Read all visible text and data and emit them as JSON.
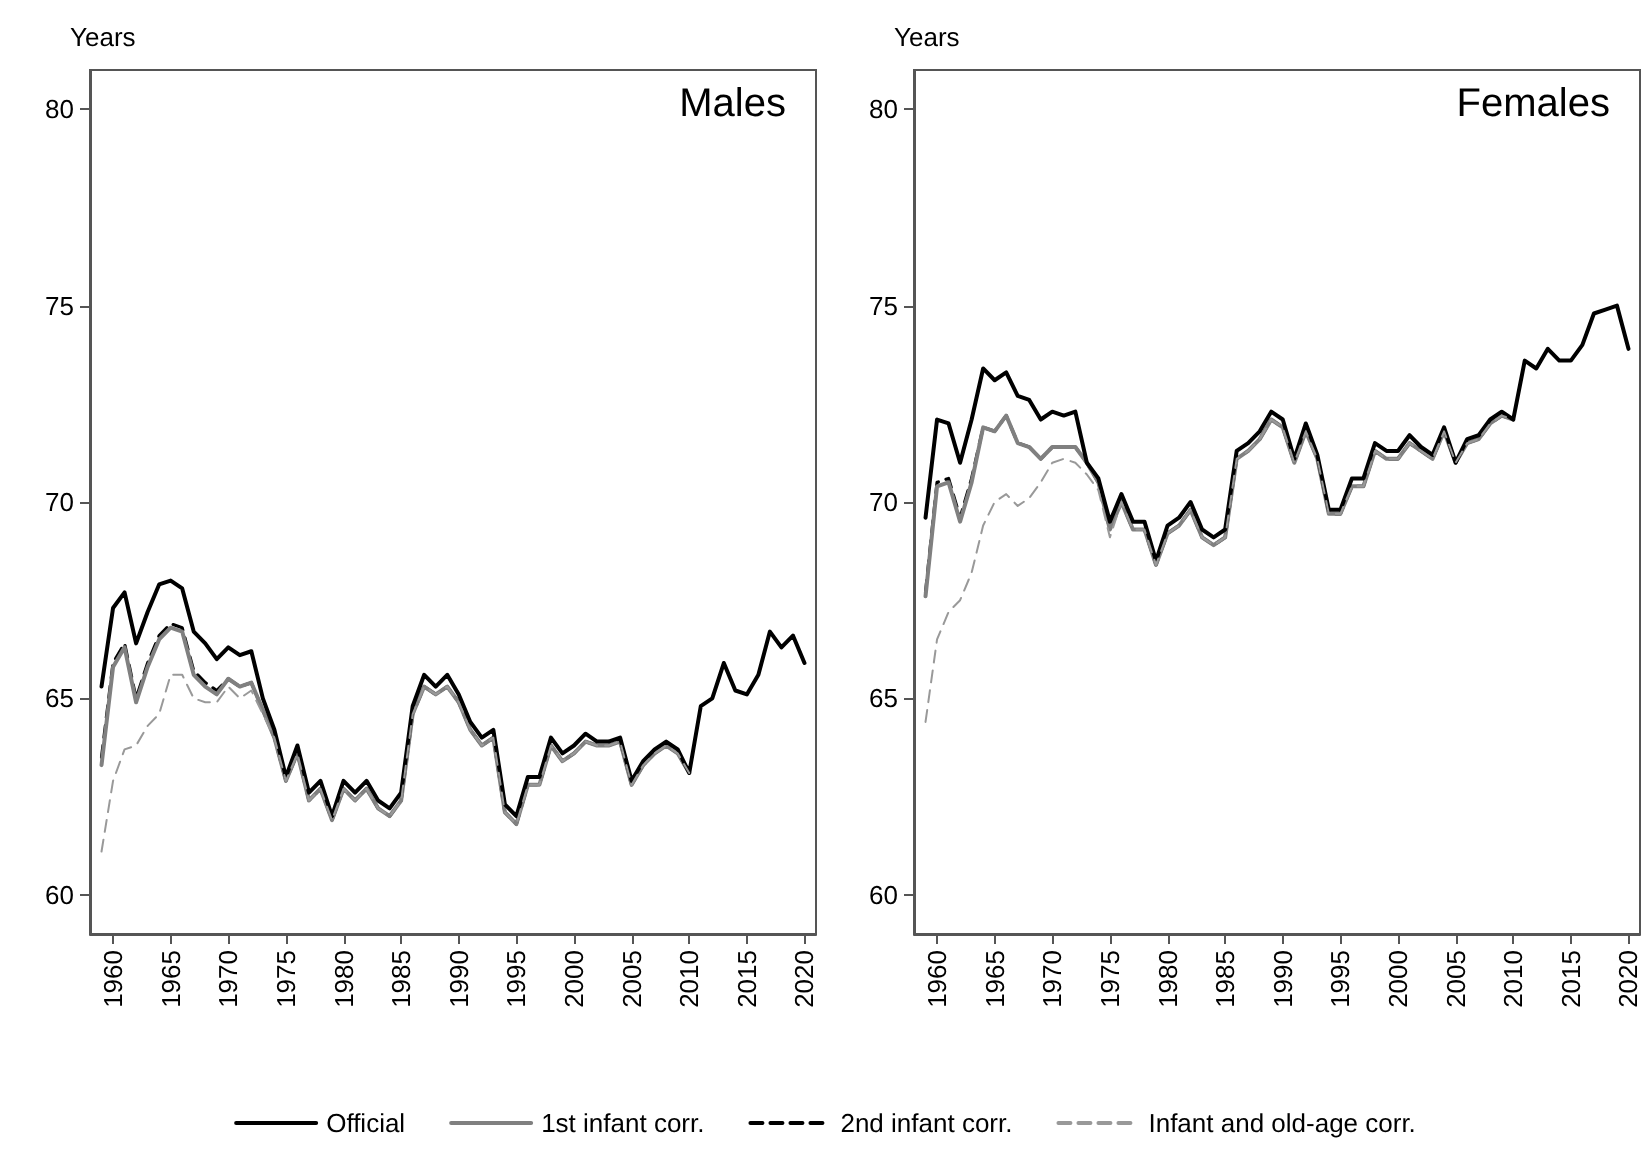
{
  "chart_data": [
    {
      "type": "line",
      "title": "Males",
      "ylabel": "Years",
      "legend": "bottom",
      "marker": "none",
      "grid": false,
      "x": [
        1959,
        1960,
        1961,
        1962,
        1963,
        1964,
        1965,
        1966,
        1967,
        1968,
        1969,
        1970,
        1971,
        1972,
        1973,
        1974,
        1975,
        1976,
        1977,
        1978,
        1979,
        1980,
        1981,
        1982,
        1983,
        1984,
        1985,
        1986,
        1987,
        1988,
        1989,
        1990,
        1991,
        1992,
        1993,
        1994,
        1995,
        1996,
        1997,
        1998,
        1999,
        2000,
        2001,
        2002,
        2003,
        2004,
        2005,
        2006,
        2007,
        2008,
        2009,
        2010,
        2011,
        2012,
        2013,
        2014,
        2015,
        2016,
        2017,
        2018,
        2019,
        2020
      ],
      "xlim": [
        1958,
        2021
      ],
      "xticks": [
        1960,
        1965,
        1970,
        1975,
        1980,
        1985,
        1990,
        1995,
        2000,
        2005,
        2010,
        2015,
        2020
      ],
      "ylim": [
        59,
        81
      ],
      "yticks": [
        60,
        65,
        70,
        75,
        80
      ],
      "series": [
        {
          "name": "Official",
          "color": "#000000",
          "line_style": "solid",
          "values": [
            65.3,
            67.3,
            67.7,
            66.4,
            67.2,
            67.9,
            68.0,
            67.8,
            66.7,
            66.4,
            66.0,
            66.3,
            66.1,
            66.2,
            65.0,
            64.2,
            63.0,
            63.8,
            62.6,
            62.9,
            62.0,
            62.9,
            62.6,
            62.9,
            62.4,
            62.2,
            62.6,
            64.8,
            65.6,
            65.3,
            65.6,
            65.1,
            64.4,
            64.0,
            64.2,
            62.3,
            62.0,
            63.0,
            63.0,
            64.0,
            63.6,
            63.8,
            64.1,
            63.9,
            63.9,
            64.0,
            62.9,
            63.4,
            63.7,
            63.9,
            63.7,
            63.1,
            64.8,
            65.0,
            65.9,
            65.2,
            65.1,
            65.6,
            66.7,
            66.3,
            66.6,
            65.9
          ]
        },
        {
          "name": "1st infant corr.",
          "color": "#808080",
          "line_style": "solid",
          "values": [
            63.3,
            65.8,
            66.3,
            64.9,
            65.8,
            66.5,
            66.8,
            66.7,
            65.6,
            65.3,
            65.1,
            65.5,
            65.3,
            65.4,
            64.7,
            64.0,
            62.9,
            63.6,
            62.4,
            62.7,
            61.9,
            62.7,
            62.4,
            62.7,
            62.2,
            62.0,
            62.4,
            64.6,
            65.3,
            65.1,
            65.3,
            64.9,
            64.2,
            63.8,
            64.0,
            62.1,
            61.8,
            62.8,
            62.8,
            63.8,
            63.4,
            63.6,
            63.9,
            63.8,
            63.8,
            63.9,
            62.8,
            63.3,
            63.6,
            63.8,
            63.6,
            63.1,
            null,
            null,
            null,
            null,
            null,
            null,
            null,
            null,
            null,
            null
          ]
        },
        {
          "name": "2nd infant corr.",
          "color": "#000000",
          "line_style": "dashed",
          "values": [
            63.5,
            65.9,
            66.4,
            65.0,
            65.9,
            66.6,
            66.9,
            66.8,
            65.7,
            65.4,
            65.2,
            65.5,
            65.3,
            65.4,
            64.7,
            64.0,
            62.9,
            63.6,
            62.4,
            62.7,
            61.9,
            62.7,
            62.4,
            62.7,
            62.2,
            62.0,
            62.4,
            64.6,
            65.3,
            65.1,
            65.3,
            64.9,
            64.2,
            63.8,
            64.0,
            62.1,
            61.8,
            62.8,
            62.8,
            63.8,
            63.4,
            63.6,
            63.9,
            63.8,
            63.8,
            63.9,
            62.8,
            63.3,
            63.6,
            63.8,
            63.6,
            63.1,
            null,
            null,
            null,
            null,
            null,
            null,
            null,
            null,
            null,
            null
          ]
        },
        {
          "name": "Infant and old-age corr.",
          "color": "#999999",
          "line_style": "dashed",
          "values": [
            61.1,
            62.9,
            63.7,
            63.8,
            64.3,
            64.6,
            65.6,
            65.6,
            65.0,
            64.9,
            64.9,
            65.3,
            65.0,
            65.2,
            64.6,
            64.0,
            62.9,
            63.6,
            62.4,
            62.7,
            61.9,
            62.7,
            62.4,
            62.7,
            62.2,
            62.0,
            62.4,
            64.6,
            65.3,
            65.1,
            65.3,
            64.9,
            64.2,
            63.8,
            64.0,
            62.1,
            61.8,
            62.8,
            62.8,
            63.8,
            63.4,
            63.6,
            63.9,
            63.8,
            63.8,
            63.9,
            62.8,
            63.3,
            63.6,
            63.8,
            63.6,
            63.1,
            null,
            null,
            null,
            null,
            null,
            null,
            null,
            null,
            null,
            null
          ]
        }
      ]
    },
    {
      "type": "line",
      "title": "Females",
      "ylabel": "Years",
      "legend": false,
      "marker": "none",
      "grid": false,
      "x": [
        1959,
        1960,
        1961,
        1962,
        1963,
        1964,
        1965,
        1966,
        1967,
        1968,
        1969,
        1970,
        1971,
        1972,
        1973,
        1974,
        1975,
        1976,
        1977,
        1978,
        1979,
        1980,
        1981,
        1982,
        1983,
        1984,
        1985,
        1986,
        1987,
        1988,
        1989,
        1990,
        1991,
        1992,
        1993,
        1994,
        1995,
        1996,
        1997,
        1998,
        1999,
        2000,
        2001,
        2002,
        2003,
        2004,
        2005,
        2006,
        2007,
        2008,
        2009,
        2010,
        2011,
        2012,
        2013,
        2014,
        2015,
        2016,
        2017,
        2018,
        2019,
        2020
      ],
      "xlim": [
        1958,
        2021
      ],
      "xticks": [
        1960,
        1965,
        1970,
        1975,
        1980,
        1985,
        1990,
        1995,
        2000,
        2005,
        2010,
        2015,
        2020
      ],
      "ylim": [
        59,
        81
      ],
      "yticks": [
        60,
        65,
        70,
        75,
        80
      ],
      "series": [
        {
          "color": "#000000",
          "line_style": "solid",
          "values": [
            69.6,
            72.1,
            72.0,
            71.0,
            72.1,
            73.4,
            73.1,
            73.3,
            72.7,
            72.6,
            72.1,
            72.3,
            72.2,
            72.3,
            71.0,
            70.6,
            69.5,
            70.2,
            69.5,
            69.5,
            68.5,
            69.4,
            69.6,
            70.0,
            69.3,
            69.1,
            69.3,
            71.3,
            71.5,
            71.8,
            72.3,
            72.1,
            71.1,
            72.0,
            71.2,
            69.8,
            69.8,
            70.6,
            70.6,
            71.5,
            71.3,
            71.3,
            71.7,
            71.4,
            71.2,
            71.9,
            71.0,
            71.6,
            71.7,
            72.1,
            72.3,
            72.1,
            73.6,
            73.4,
            73.9,
            73.6,
            73.6,
            74.0,
            74.8,
            74.9,
            75.0,
            73.9
          ]
        },
        {
          "color": "#808080",
          "line_style": "solid",
          "values": [
            67.6,
            70.4,
            70.5,
            69.5,
            70.5,
            71.9,
            71.8,
            72.2,
            71.5,
            71.4,
            71.1,
            71.4,
            71.4,
            71.4,
            71.0,
            70.5,
            69.3,
            70.0,
            69.3,
            69.3,
            68.4,
            69.2,
            69.4,
            69.8,
            69.1,
            68.9,
            69.1,
            71.1,
            71.3,
            71.6,
            72.1,
            71.9,
            71.0,
            71.8,
            71.1,
            69.7,
            69.7,
            70.4,
            70.4,
            71.3,
            71.1,
            71.1,
            71.5,
            71.3,
            71.1,
            71.8,
            71.0,
            71.5,
            71.6,
            72.0,
            72.2,
            72.1,
            null,
            null,
            null,
            null,
            null,
            null,
            null,
            null,
            null,
            null
          ]
        },
        {
          "color": "#000000",
          "line_style": "dashed",
          "values": [
            67.7,
            70.5,
            70.6,
            69.6,
            70.6,
            71.9,
            71.8,
            72.2,
            71.5,
            71.4,
            71.1,
            71.4,
            71.4,
            71.4,
            71.0,
            70.5,
            69.3,
            70.0,
            69.3,
            69.3,
            68.4,
            69.2,
            69.4,
            69.8,
            69.1,
            68.9,
            69.1,
            71.1,
            71.3,
            71.6,
            72.1,
            71.9,
            71.0,
            71.8,
            71.1,
            69.7,
            69.7,
            70.4,
            70.4,
            71.3,
            71.1,
            71.1,
            71.5,
            71.3,
            71.1,
            71.8,
            71.0,
            71.5,
            71.6,
            72.0,
            72.2,
            72.1,
            null,
            null,
            null,
            null,
            null,
            null,
            null,
            null,
            null,
            null
          ]
        },
        {
          "color": "#999999",
          "line_style": "dashed",
          "values": [
            64.4,
            66.5,
            67.2,
            67.5,
            68.2,
            69.4,
            70.0,
            70.2,
            69.9,
            70.1,
            70.5,
            71.0,
            71.1,
            71.0,
            70.7,
            70.3,
            69.1,
            70.0,
            69.3,
            69.3,
            68.4,
            69.2,
            69.4,
            69.8,
            69.1,
            68.9,
            69.1,
            71.1,
            71.3,
            71.6,
            72.1,
            71.9,
            71.0,
            71.8,
            71.1,
            69.7,
            69.7,
            70.4,
            70.4,
            71.3,
            71.1,
            71.1,
            71.5,
            71.3,
            71.1,
            71.8,
            71.0,
            71.5,
            71.6,
            72.0,
            72.2,
            72.1,
            null,
            null,
            null,
            null,
            null,
            null,
            null,
            null,
            null,
            null
          ]
        }
      ]
    }
  ]
}
